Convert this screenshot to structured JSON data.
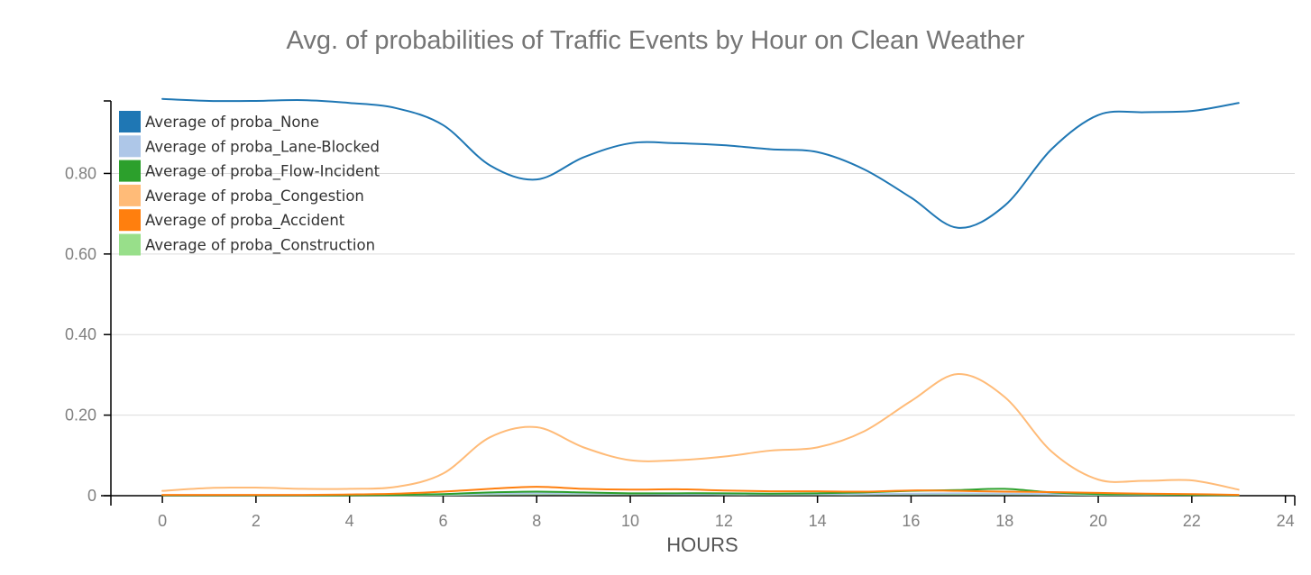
{
  "chart_data": {
    "type": "line",
    "title": "Avg. of probabilities of Traffic Events by Hour on Clean Weather",
    "xlabel": "HOURS",
    "ylabel": "",
    "xlim": [
      -1.1,
      24.2
    ],
    "ylim": [
      0,
      0.98
    ],
    "x_ticks": [
      0,
      2,
      4,
      6,
      8,
      10,
      12,
      14,
      16,
      18,
      20,
      22,
      24
    ],
    "x_tick_labels": [
      "0",
      "2",
      "4",
      "6",
      "8",
      "10",
      "12",
      "14",
      "16",
      "18",
      "20",
      "22",
      "24"
    ],
    "y_ticks": [
      0,
      0.2,
      0.4,
      0.6,
      0.8
    ],
    "y_tick_labels": [
      "0",
      "0.20",
      "0.40",
      "0.60",
      "0.80"
    ],
    "grid": "horizontal",
    "legend_position": "top-left",
    "x": [
      0,
      1,
      2,
      3,
      4,
      5,
      6,
      7,
      8,
      9,
      10,
      11,
      12,
      13,
      14,
      15,
      16,
      17,
      18,
      19,
      20,
      21,
      22,
      23
    ],
    "series": [
      {
        "name": "Average of proba_None",
        "color": "#1f77b4",
        "values": [
          0.985,
          0.98,
          0.98,
          0.982,
          0.975,
          0.962,
          0.92,
          0.82,
          0.785,
          0.84,
          0.875,
          0.875,
          0.87,
          0.86,
          0.853,
          0.81,
          0.74,
          0.665,
          0.72,
          0.86,
          0.945,
          0.952,
          0.955,
          0.975
        ]
      },
      {
        "name": "Average of proba_Lane-Blocked",
        "color": "#aec7e8",
        "values": [
          0.001,
          0.001,
          0.001,
          0.001,
          0.001,
          0.002,
          0.003,
          0.005,
          0.006,
          0.005,
          0.005,
          0.004,
          0.004,
          0.004,
          0.004,
          0.004,
          0.005,
          0.006,
          0.005,
          0.004,
          0.003,
          0.002,
          0.002,
          0.001
        ]
      },
      {
        "name": "Average of proba_Flow-Incident",
        "color": "#2ca02c",
        "values": [
          0.001,
          0.001,
          0.001,
          0.001,
          0.001,
          0.002,
          0.004,
          0.008,
          0.01,
          0.008,
          0.006,
          0.006,
          0.006,
          0.005,
          0.006,
          0.008,
          0.012,
          0.014,
          0.017,
          0.008,
          0.004,
          0.003,
          0.002,
          0.001
        ]
      },
      {
        "name": "Average of proba_Congestion",
        "color": "#ffbb78",
        "values": [
          0.012,
          0.019,
          0.02,
          0.017,
          0.017,
          0.022,
          0.055,
          0.145,
          0.17,
          0.12,
          0.088,
          0.088,
          0.097,
          0.112,
          0.12,
          0.16,
          0.235,
          0.302,
          0.245,
          0.11,
          0.04,
          0.037,
          0.038,
          0.015
        ]
      },
      {
        "name": "Average of proba_Accident",
        "color": "#ff7f0e",
        "values": [
          0.002,
          0.002,
          0.002,
          0.002,
          0.003,
          0.005,
          0.01,
          0.017,
          0.022,
          0.017,
          0.015,
          0.016,
          0.013,
          0.011,
          0.011,
          0.01,
          0.013,
          0.012,
          0.01,
          0.009,
          0.007,
          0.005,
          0.004,
          0.002
        ]
      },
      {
        "name": "Average of proba_Construction",
        "color": "#98df8a",
        "values": [
          0.001,
          0.001,
          0.001,
          0.001,
          0.001,
          0.001,
          0.002,
          0.003,
          0.004,
          0.004,
          0.004,
          0.004,
          0.003,
          0.003,
          0.003,
          0.003,
          0.004,
          0.004,
          0.004,
          0.003,
          0.002,
          0.002,
          0.002,
          0.001
        ]
      }
    ]
  }
}
